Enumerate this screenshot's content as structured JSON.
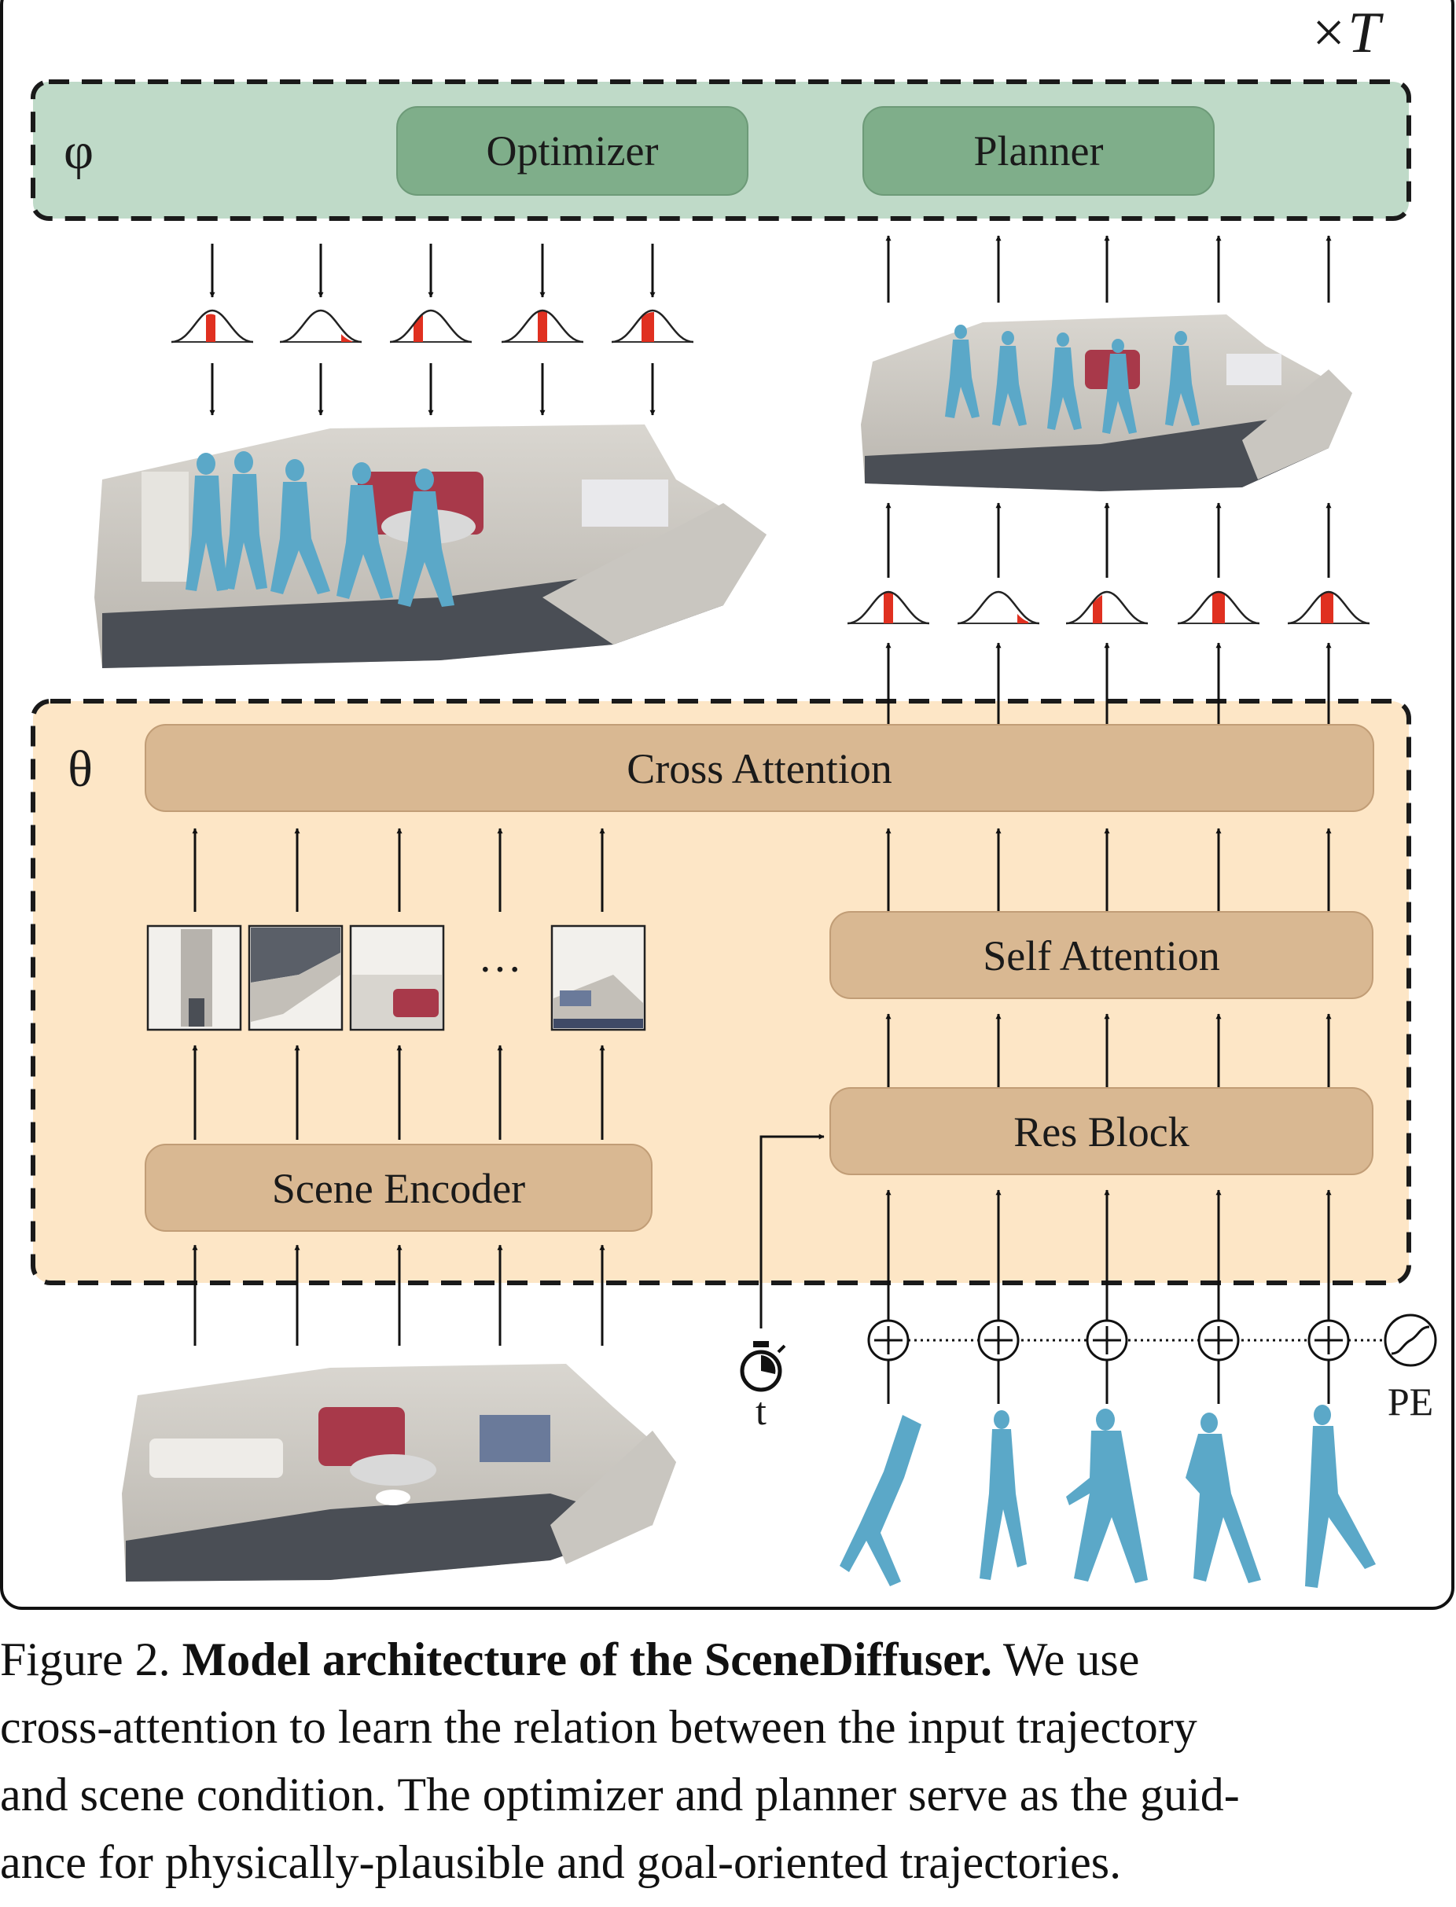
{
  "figure": {
    "repeat_label": "×T",
    "phi_symbol": "φ",
    "theta_symbol": "θ",
    "modules": {
      "optimizer": "Optimizer",
      "planner": "Planner",
      "cross_attention": "Cross Attention",
      "self_attention": "Self Attention",
      "res_block": "Res Block",
      "scene_encoder": "Scene Encoder"
    },
    "ellipsis": "···",
    "timestep_label": "t",
    "pe_label": "PE"
  },
  "caption": {
    "prefix": "Figure 2.",
    "bold": "Model architecture of the SceneDiffuser.",
    "line1_rest": "We use",
    "line2": "cross-attention to learn the relation between the input trajectory",
    "line3": "and scene condition. The optimizer and planner serve as the guid-",
    "line4": "ance for physically-plausible and goal-oriented trajectories."
  },
  "colors": {
    "phi_fill": "#bfdac8",
    "module_green": "#7fae8a",
    "theta_fill": "#fde6c6",
    "module_tan": "#d9b892",
    "human": "#5ba8c8",
    "gaussian_red": "#e03020"
  }
}
